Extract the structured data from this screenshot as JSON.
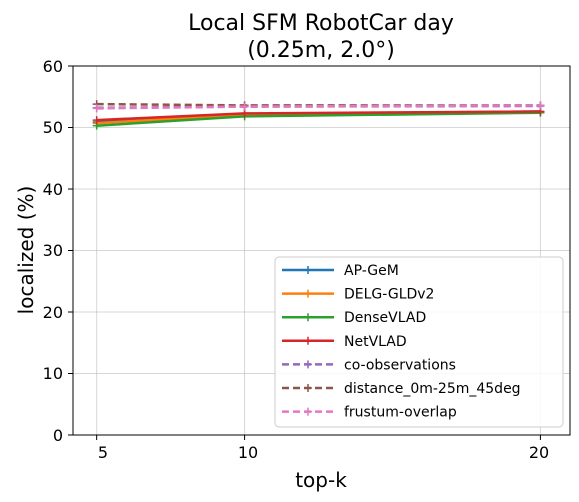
{
  "chart_data": {
    "type": "line",
    "title_line1": "Local SFM RobotCar day",
    "title_line2": "(0.25m, 2.0°)",
    "xlabel": "top-k",
    "ylabel": "localized (%)",
    "x": [
      5,
      10,
      20
    ],
    "xlim": [
      4.2,
      21
    ],
    "ylim": [
      0,
      60
    ],
    "x_ticks": [
      "5",
      "10",
      "20"
    ],
    "y_ticks": [
      "0",
      "10",
      "20",
      "30",
      "40",
      "50",
      "60"
    ],
    "grid": true,
    "legend_position": "lower right",
    "series": [
      {
        "name": "AP-GeM",
        "color": "#1f77b4",
        "style": "solid",
        "values": [
          50.9,
          52.2,
          52.6
        ]
      },
      {
        "name": "DELG-GLDv2",
        "color": "#ff7f0e",
        "style": "solid",
        "values": [
          50.7,
          52.1,
          52.5
        ]
      },
      {
        "name": "DenseVLAD",
        "color": "#2ca02c",
        "style": "solid",
        "values": [
          50.3,
          51.8,
          52.4
        ]
      },
      {
        "name": "NetVLAD",
        "color": "#d62728",
        "style": "solid",
        "values": [
          51.2,
          52.3,
          52.6
        ]
      },
      {
        "name": "co-observations",
        "color": "#9467bd",
        "style": "dashed",
        "values": [
          53.2,
          53.4,
          53.5
        ]
      },
      {
        "name": "distance_0m-25m_45deg",
        "color": "#8c564b",
        "style": "dashed",
        "values": [
          53.8,
          53.6,
          53.6
        ]
      },
      {
        "name": "frustum-overlap",
        "color": "#e377c2",
        "style": "dashed",
        "values": [
          53.1,
          53.4,
          53.6
        ]
      }
    ]
  }
}
